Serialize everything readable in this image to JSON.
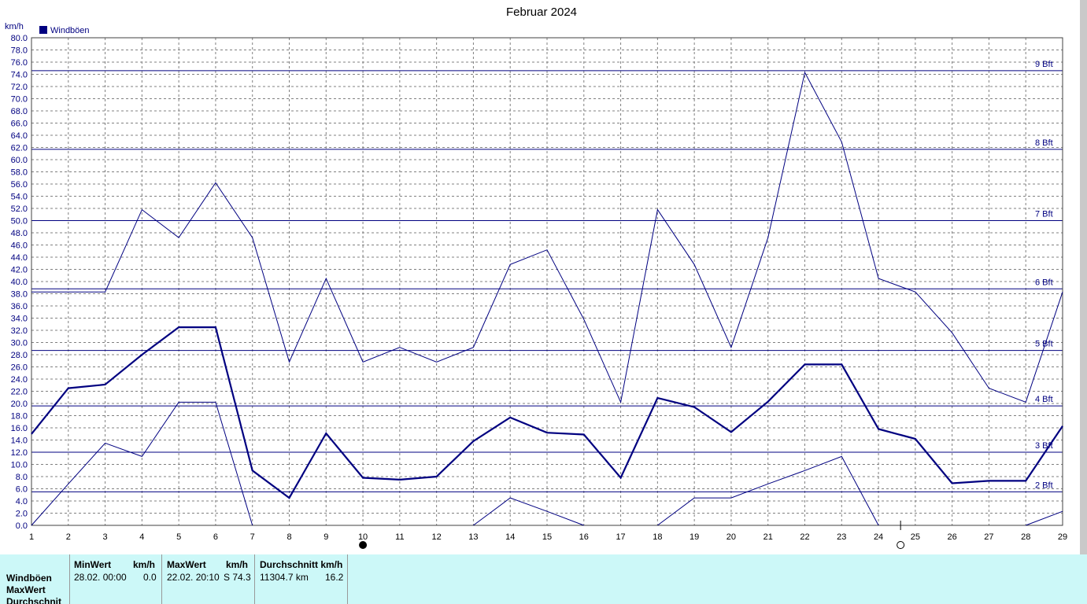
{
  "chart_data": {
    "type": "line",
    "title": "Februar 2024",
    "ylabel": "km/h",
    "legend": [
      "Windböen"
    ],
    "ylim": [
      0,
      80
    ],
    "yticks": [
      "0.0",
      "2.0",
      "4.0",
      "6.0",
      "8.0",
      "10.0",
      "12.0",
      "14.0",
      "16.0",
      "18.0",
      "20.0",
      "22.0",
      "24.0",
      "26.0",
      "28.0",
      "30.0",
      "32.0",
      "34.0",
      "36.0",
      "38.0",
      "40.0",
      "42.0",
      "44.0",
      "46.0",
      "48.0",
      "50.0",
      "52.0",
      "54.0",
      "56.0",
      "58.0",
      "60.0",
      "62.0",
      "64.0",
      "66.0",
      "68.0",
      "70.0",
      "72.0",
      "74.0",
      "76.0",
      "78.0",
      "80.0"
    ],
    "x": [
      1,
      2,
      3,
      4,
      5,
      6,
      7,
      8,
      9,
      10,
      11,
      12,
      13,
      14,
      15,
      16,
      17,
      18,
      19,
      20,
      21,
      22,
      23,
      24,
      25,
      26,
      27,
      28,
      29
    ],
    "xticks": [
      "1",
      "2",
      "3",
      "4",
      "5",
      "6",
      "7",
      "8",
      "9",
      "10",
      "11",
      "12",
      "13",
      "14",
      "15",
      "16",
      "17",
      "18",
      "19",
      "20",
      "21",
      "22",
      "23",
      "24",
      "25",
      "26",
      "27",
      "28",
      "29"
    ],
    "series": [
      {
        "role": "max",
        "values": [
          38.3,
          38.3,
          38.3,
          51.8,
          47.2,
          56.2,
          47.2,
          26.8,
          40.5,
          26.8,
          29.2,
          26.8,
          29.2,
          42.8,
          45.2,
          33.8,
          20.2,
          51.8,
          42.8,
          29.2,
          47.2,
          74.3,
          62.9,
          40.5,
          38.3,
          31.6,
          22.5,
          20.2,
          38.3
        ]
      },
      {
        "role": "avg",
        "values": [
          15.0,
          22.5,
          23.1,
          28.0,
          32.5,
          32.5,
          9.0,
          4.5,
          15.1,
          7.8,
          7.5,
          8.0,
          13.8,
          17.7,
          15.2,
          14.9,
          7.8,
          20.9,
          19.4,
          15.3,
          20.3,
          26.4,
          26.4,
          15.8,
          14.2,
          6.9,
          7.3,
          7.3,
          16.3
        ]
      },
      {
        "role": "min",
        "values": [
          0.0,
          6.8,
          13.5,
          11.3,
          20.2,
          20.2,
          0.0,
          null,
          null,
          null,
          null,
          null,
          0.0,
          4.5,
          2.3,
          0.0,
          null,
          0.0,
          4.5,
          4.5,
          6.8,
          9.0,
          11.3,
          0.0,
          null,
          null,
          null,
          0.0,
          2.3
        ]
      }
    ],
    "beaufort": [
      {
        "label": "2 Bft",
        "value": 5.5
      },
      {
        "label": "3 Bft",
        "value": 12.0
      },
      {
        "label": "4 Bft",
        "value": 19.6
      },
      {
        "label": "5 Bft",
        "value": 28.7
      },
      {
        "label": "6 Bft",
        "value": 38.8
      },
      {
        "label": "7 Bft",
        "value": 50.0
      },
      {
        "label": "8 Bft",
        "value": 61.7
      },
      {
        "label": "9 Bft",
        "value": 74.6
      }
    ],
    "moon_phases": [
      {
        "day": 10,
        "phase": "new"
      },
      {
        "day": 24.6,
        "phase": "full"
      }
    ],
    "grid": true
  },
  "colors": {
    "series": "#000080",
    "grid": "#808080",
    "stats_bg": "#ccf8f8"
  },
  "stats": {
    "row_labels": [
      "Windböen",
      "MaxWert",
      "Durchschnit"
    ],
    "min": {
      "header": "MinWert",
      "unit": "km/h",
      "time": "28.02.  00:00",
      "value": "0.0"
    },
    "max": {
      "header": "MaxWert",
      "unit": "km/h",
      "time": "22.02.  20:10",
      "value": "S 74.3"
    },
    "avg": {
      "header": "Durchschnitt km/h",
      "distance": "11304.7 km",
      "value": "16.2"
    }
  }
}
